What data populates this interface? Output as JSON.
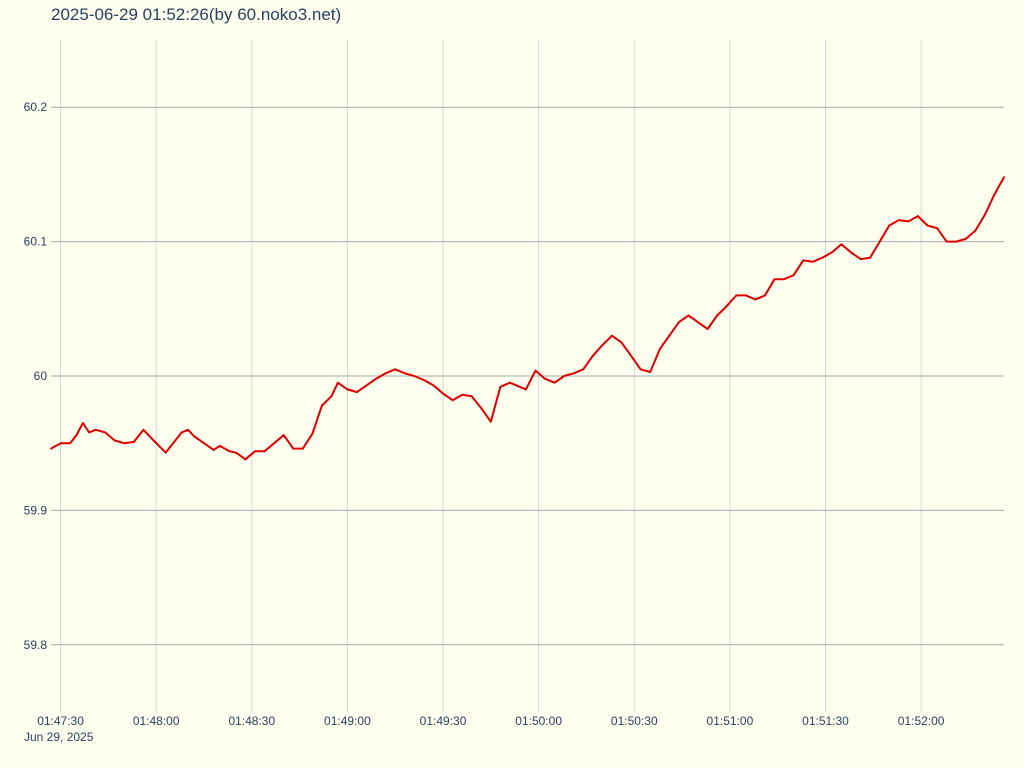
{
  "chart_data": {
    "type": "line",
    "title": "2025-06-29 01:52:26(by 60.noko3.net)",
    "xlabel": "",
    "ylabel": "",
    "x_tick_labels": [
      "01:47:30",
      "01:48:00",
      "01:48:30",
      "01:49:00",
      "01:49:30",
      "01:50:00",
      "01:50:30",
      "01:51:00",
      "01:51:30",
      "01:52:00"
    ],
    "x_date_label": "Jun 29, 2025",
    "y_tick_labels": [
      "59.8",
      "59.9",
      "60",
      "60.1",
      "60.2"
    ],
    "y_ticks": [
      59.8,
      59.9,
      60.0,
      60.1,
      60.2
    ],
    "xlim": [
      "01:47:27",
      "01:52:26"
    ],
    "ylim": [
      59.75,
      60.25
    ],
    "grid": true,
    "legend": "none",
    "series": [
      {
        "color": "#e00000",
        "x": [
          "01:47:27",
          "01:47:30",
          "01:47:33",
          "01:47:35",
          "01:47:37",
          "01:47:39",
          "01:47:41",
          "01:47:44",
          "01:47:47",
          "01:47:50",
          "01:47:53",
          "01:47:56",
          "01:48:00",
          "01:48:03",
          "01:48:06",
          "01:48:08",
          "01:48:10",
          "01:48:12",
          "01:48:15",
          "01:48:18",
          "01:48:20",
          "01:48:23",
          "01:48:25",
          "01:48:28",
          "01:48:31",
          "01:48:34",
          "01:48:37",
          "01:48:40",
          "01:48:43",
          "01:48:46",
          "01:48:49",
          "01:48:52",
          "01:48:55",
          "01:48:57",
          "01:49:00",
          "01:49:03",
          "01:49:06",
          "01:49:09",
          "01:49:12",
          "01:49:15",
          "01:49:18",
          "01:49:21",
          "01:49:24",
          "01:49:27",
          "01:49:30",
          "01:49:33",
          "01:49:36",
          "01:49:39",
          "01:49:42",
          "01:49:45",
          "01:49:48",
          "01:49:51",
          "01:49:53",
          "01:49:56",
          "01:49:59",
          "01:50:02",
          "01:50:05",
          "01:50:08",
          "01:50:11",
          "01:50:14",
          "01:50:17",
          "01:50:20",
          "01:50:23",
          "01:50:26",
          "01:50:29",
          "01:50:32",
          "01:50:35",
          "01:50:38",
          "01:50:41",
          "01:50:44",
          "01:50:47",
          "01:50:50",
          "01:50:53",
          "01:50:56",
          "01:50:59",
          "01:51:02",
          "01:51:05",
          "01:51:08",
          "01:51:11",
          "01:51:14",
          "01:51:17",
          "01:51:20",
          "01:51:23",
          "01:51:26",
          "01:51:29",
          "01:51:32",
          "01:51:35",
          "01:51:38",
          "01:51:41",
          "01:51:44",
          "01:51:47",
          "01:51:50",
          "01:51:53",
          "01:51:56",
          "01:51:59",
          "01:52:02",
          "01:52:05",
          "01:52:08",
          "01:52:11",
          "01:52:14",
          "01:52:17",
          "01:52:20",
          "01:52:23",
          "01:52:26"
        ],
        "values": [
          59.946,
          59.95,
          59.95,
          59.956,
          59.965,
          59.958,
          59.96,
          59.958,
          59.952,
          59.95,
          59.951,
          59.96,
          59.95,
          59.943,
          59.952,
          59.958,
          59.96,
          59.955,
          59.95,
          59.945,
          59.948,
          59.944,
          59.943,
          59.938,
          59.944,
          59.944,
          59.95,
          59.956,
          59.946,
          59.946,
          59.957,
          59.978,
          59.985,
          59.995,
          59.99,
          59.988,
          59.993,
          59.998,
          60.002,
          60.005,
          60.002,
          60.0,
          59.997,
          59.993,
          59.987,
          59.982,
          59.986,
          59.985,
          59.976,
          59.966,
          59.992,
          59.995,
          59.993,
          59.99,
          60.004,
          59.998,
          59.995,
          60.0,
          60.002,
          60.005,
          60.015,
          60.023,
          60.03,
          60.025,
          60.015,
          60.005,
          60.003,
          60.02,
          60.03,
          60.04,
          60.045,
          60.04,
          60.035,
          60.045,
          60.052,
          60.06,
          60.06,
          60.057,
          60.06,
          60.072,
          60.072,
          60.075,
          60.086,
          60.085,
          60.088,
          60.092,
          60.098,
          60.092,
          60.087,
          60.088,
          60.1,
          60.112,
          60.116,
          60.115,
          60.119,
          60.112,
          60.11,
          60.1,
          60.1,
          60.102,
          60.108,
          60.12,
          60.135,
          60.148
        ]
      }
    ]
  }
}
